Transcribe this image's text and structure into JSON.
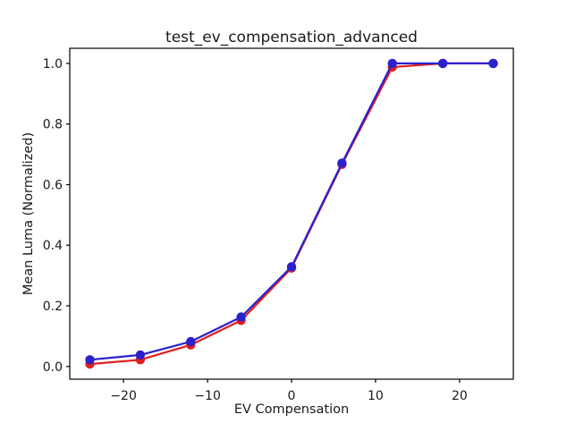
{
  "figure": {
    "background": "#ffffff",
    "spine_color": "#000000",
    "text_color": "#1a1a1a"
  },
  "chart_data": {
    "type": "line",
    "title": "test_ev_compensation_advanced",
    "xlabel": "EV Compensation",
    "ylabel": "Mean Luma (Normalized)",
    "x": [
      -24,
      -18,
      -12,
      -6,
      0,
      6,
      12,
      18,
      24
    ],
    "series": [
      {
        "name": "red",
        "color": "#e02020",
        "marker": "circle",
        "values": [
          0.008,
          0.022,
          0.071,
          0.152,
          0.325,
          0.667,
          0.988,
          1.0,
          1.0
        ]
      },
      {
        "name": "blue",
        "color": "#2a22cc",
        "marker": "circle",
        "values": [
          0.022,
          0.038,
          0.082,
          0.163,
          0.329,
          0.671,
          1.0,
          1.0,
          1.0
        ]
      }
    ],
    "xlim": [
      -26.4,
      26.4
    ],
    "ylim": [
      -0.042,
      1.05
    ],
    "xticks": {
      "values": [
        -20,
        -10,
        0,
        10,
        20
      ],
      "labels": [
        "−20",
        "−10",
        "0",
        "10",
        "20"
      ]
    },
    "yticks": {
      "values": [
        0.0,
        0.2,
        0.4,
        0.6,
        0.8,
        1.0
      ],
      "labels": [
        "0.0",
        "0.2",
        "0.4",
        "0.6",
        "0.8",
        "1.0"
      ]
    },
    "grid": false,
    "legend_visible": false
  }
}
